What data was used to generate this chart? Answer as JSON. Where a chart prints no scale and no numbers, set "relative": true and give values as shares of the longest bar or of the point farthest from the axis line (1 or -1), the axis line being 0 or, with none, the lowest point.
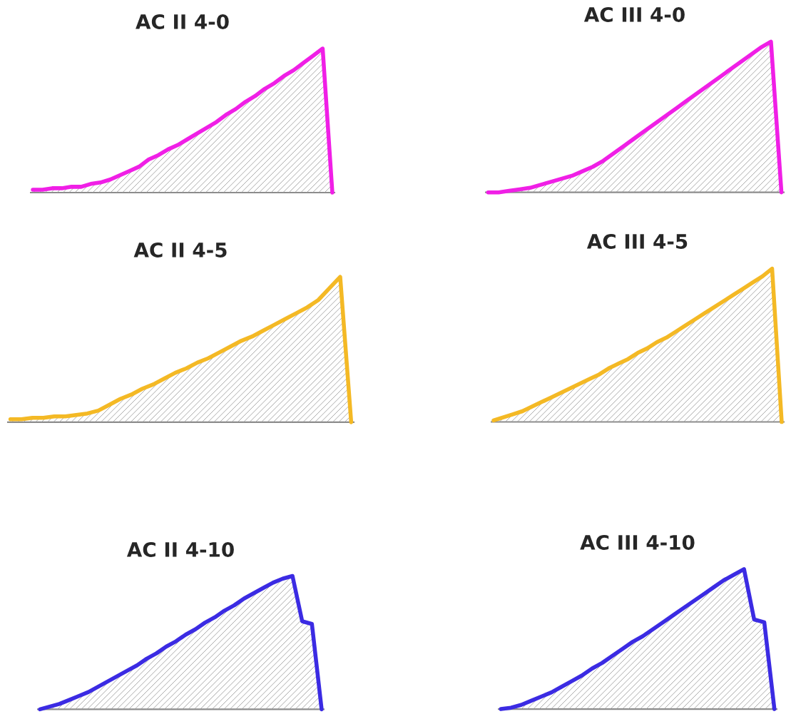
{
  "chart_data": [
    {
      "type": "area",
      "title": "AC II 4-0",
      "relative": true,
      "categories": [
        null,
        null,
        null,
        null,
        null,
        null,
        null,
        null,
        null,
        null,
        null,
        null,
        null,
        null,
        null,
        null,
        null,
        null,
        null,
        null,
        null,
        null,
        null,
        null,
        null,
        null,
        null,
        null,
        null,
        null,
        null,
        null
      ],
      "series": [
        {
          "color": "#f01fe6",
          "values": [
            0.02,
            0.02,
            0.03,
            0.03,
            0.04,
            0.04,
            0.06,
            0.07,
            0.09,
            0.12,
            0.15,
            0.18,
            0.23,
            0.26,
            0.3,
            0.33,
            0.37,
            0.41,
            0.45,
            0.49,
            0.54,
            0.58,
            0.63,
            0.67,
            0.72,
            0.76,
            0.81,
            0.85,
            0.9,
            0.95,
            1.0,
            0
          ]
        }
      ]
    },
    {
      "type": "area",
      "title": "AC III 4-0",
      "relative": true,
      "categories": [
        null,
        null,
        null,
        null,
        null,
        null,
        null,
        null,
        null,
        null,
        null,
        null,
        null,
        null,
        null,
        null,
        null,
        null,
        null,
        null,
        null,
        null,
        null,
        null,
        null,
        null,
        null,
        null,
        null
      ],
      "series": [
        {
          "color": "#f01fe6",
          "values": [
            0,
            0,
            0.01,
            0.02,
            0.03,
            0.05,
            0.07,
            0.09,
            0.11,
            0.14,
            0.17,
            0.21,
            0.26,
            0.31,
            0.36,
            0.41,
            0.46,
            0.51,
            0.56,
            0.61,
            0.66,
            0.71,
            0.76,
            0.81,
            0.86,
            0.91,
            0.96,
            1.0,
            0
          ]
        }
      ]
    },
    {
      "type": "area",
      "title": "AC II 4-5",
      "relative": true,
      "categories": [
        null,
        null,
        null,
        null,
        null,
        null,
        null,
        null,
        null,
        null,
        null,
        null,
        null,
        null,
        null,
        null,
        null,
        null,
        null,
        null,
        null,
        null,
        null,
        null,
        null,
        null,
        null,
        null,
        null,
        null,
        null,
        null
      ],
      "series": [
        {
          "color": "#f4b925",
          "values": [
            0.02,
            0.02,
            0.03,
            0.03,
            0.04,
            0.04,
            0.05,
            0.06,
            0.08,
            0.12,
            0.16,
            0.19,
            0.23,
            0.26,
            0.3,
            0.34,
            0.37,
            0.41,
            0.44,
            0.48,
            0.52,
            0.56,
            0.59,
            0.63,
            0.67,
            0.71,
            0.75,
            0.79,
            0.84,
            0.92,
            1.0,
            0
          ]
        }
      ]
    },
    {
      "type": "area",
      "title": "AC III 4-5",
      "relative": true,
      "categories": [
        null,
        null,
        null,
        null,
        null,
        null,
        null,
        null,
        null,
        null,
        null,
        null,
        null,
        null,
        null,
        null,
        null,
        null,
        null,
        null,
        null,
        null,
        null,
        null,
        null,
        null,
        null,
        null,
        null,
        null,
        null
      ],
      "series": [
        {
          "color": "#f4b925",
          "values": [
            0.01,
            0.03,
            0.05,
            0.07,
            0.1,
            0.13,
            0.16,
            0.19,
            0.22,
            0.25,
            0.28,
            0.31,
            0.35,
            0.38,
            0.41,
            0.45,
            0.48,
            0.52,
            0.55,
            0.59,
            0.63,
            0.67,
            0.71,
            0.75,
            0.79,
            0.83,
            0.87,
            0.91,
            0.95,
            1.0,
            0
          ]
        }
      ]
    },
    {
      "type": "area",
      "title": "AC II 4-10",
      "relative": true,
      "categories": [
        null,
        null,
        null,
        null,
        null,
        null,
        null,
        null,
        null,
        null,
        null,
        null,
        null,
        null,
        null,
        null,
        null,
        null,
        null,
        null,
        null,
        null,
        null,
        null,
        null,
        null,
        null,
        null,
        null,
        null
      ],
      "series": [
        {
          "color": "#3b2be3",
          "values": [
            0,
            0.02,
            0.04,
            0.07,
            0.1,
            0.13,
            0.17,
            0.21,
            0.25,
            0.29,
            0.33,
            0.38,
            0.42,
            0.47,
            0.51,
            0.56,
            0.6,
            0.65,
            0.69,
            0.74,
            0.78,
            0.83,
            0.87,
            0.91,
            0.95,
            0.98,
            1.0,
            0.66,
            0.64,
            0
          ]
        }
      ]
    },
    {
      "type": "area",
      "title": "AC III 4-10",
      "relative": true,
      "categories": [
        null,
        null,
        null,
        null,
        null,
        null,
        null,
        null,
        null,
        null,
        null,
        null,
        null,
        null,
        null,
        null,
        null,
        null,
        null,
        null,
        null,
        null,
        null,
        null,
        null,
        null,
        null,
        null
      ],
      "series": [
        {
          "color": "#3b2be3",
          "values": [
            0,
            0.01,
            0.03,
            0.06,
            0.09,
            0.12,
            0.16,
            0.2,
            0.24,
            0.29,
            0.33,
            0.38,
            0.43,
            0.48,
            0.52,
            0.57,
            0.62,
            0.67,
            0.72,
            0.77,
            0.82,
            0.87,
            0.92,
            0.96,
            1.0,
            0.64,
            0.62,
            0
          ]
        }
      ]
    }
  ]
}
